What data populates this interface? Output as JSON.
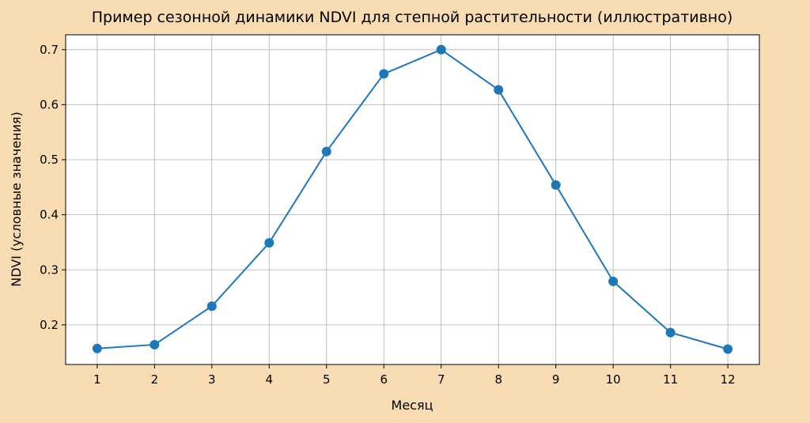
{
  "chart_data": {
    "type": "line",
    "title": "Пример сезонной динамики NDVI для степной растительности (иллюстративно)",
    "x_label": "Месяц",
    "y_label": "NDVI (условные значения)",
    "x": [
      1,
      2,
      3,
      4,
      5,
      6,
      7,
      8,
      9,
      10,
      11,
      12
    ],
    "series": [
      {
        "color": "#1f77b4",
        "values": [
          0.157,
          0.164,
          0.234,
          0.349,
          0.515,
          0.656,
          0.7,
          0.627,
          0.454,
          0.279,
          0.186,
          0.156
        ]
      }
    ],
    "xlim": [
      0.45,
      12.55
    ],
    "xticks": [
      1,
      2,
      3,
      4,
      5,
      6,
      7,
      8,
      9,
      10,
      11,
      12
    ],
    "ylim": [
      0.128,
      0.727
    ],
    "yticks": [
      0.2,
      0.3,
      0.4,
      0.5,
      0.6,
      0.7
    ],
    "grid": true,
    "markers": true
  }
}
